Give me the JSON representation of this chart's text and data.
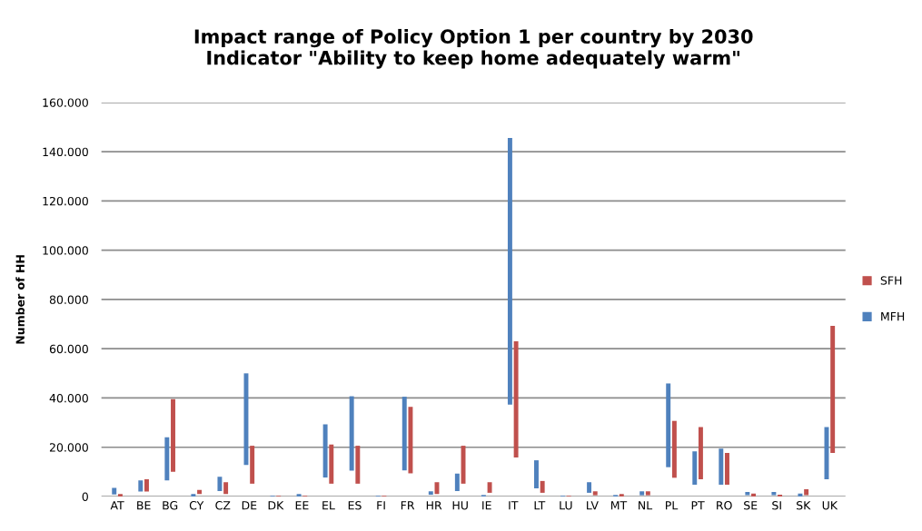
{
  "chart_data": {
    "type": "bar",
    "title": "Impact range of Policy Option 1 per country by 2030\nIndicator \"Ability to keep home adequately warm\"",
    "ylabel": "Number of HH",
    "categories": [
      "AT",
      "BE",
      "BG",
      "CY",
      "CZ",
      "DE",
      "DK",
      "EE",
      "EL",
      "ES",
      "FI",
      "FR",
      "HR",
      "HU",
      "IE",
      "IT",
      "LT",
      "LU",
      "LV",
      "MT",
      "NL",
      "PL",
      "PT",
      "RO",
      "SE",
      "SI",
      "SK",
      "UK"
    ],
    "series": [
      {
        "name": "MFH",
        "color": "#4f81bd",
        "base": [
          800,
          2000,
          6500,
          0,
          2200,
          12800,
          0,
          0,
          7700,
          10500,
          0,
          10600,
          700,
          2200,
          0,
          37300,
          3300,
          0,
          1500,
          0,
          500,
          11900,
          4800,
          4800,
          500,
          500,
          0,
          7000
        ],
        "values": [
          2700,
          4500,
          17500,
          1000,
          5800,
          37200,
          300,
          1000,
          21600,
          30200,
          300,
          29900,
          1400,
          7100,
          600,
          108300,
          11400,
          300,
          4300,
          600,
          1600,
          34000,
          13500,
          14600,
          1300,
          1300,
          1200,
          21200
        ]
      },
      {
        "name": "SFH",
        "color": "#c0504d",
        "base": [
          0,
          2000,
          10000,
          1000,
          1000,
          5200,
          0,
          0,
          5200,
          5200,
          0,
          9400,
          1000,
          5200,
          1500,
          15800,
          1500,
          0,
          500,
          0,
          500,
          7600,
          7000,
          4800,
          0,
          0,
          500,
          17700
        ],
        "values": [
          1000,
          5000,
          29500,
          1700,
          4800,
          15400,
          300,
          300,
          15900,
          15400,
          300,
          27000,
          4800,
          15400,
          4300,
          47200,
          4800,
          300,
          1600,
          1000,
          1600,
          23100,
          21200,
          12900,
          1200,
          700,
          2400,
          51600
        ]
      }
    ],
    "stacked": false,
    "ylim": [
      0,
      160000
    ],
    "yticks": [
      {
        "value": 0,
        "label": "0"
      },
      {
        "value": 20000,
        "label": "20.000"
      },
      {
        "value": 40000,
        "label": "40.000"
      },
      {
        "value": 60000,
        "label": "60.000"
      },
      {
        "value": 80000,
        "label": "80.000"
      },
      {
        "value": 100000,
        "label": "100.000"
      },
      {
        "value": 120000,
        "label": "120.000"
      },
      {
        "value": 140000,
        "label": "140.000"
      },
      {
        "value": 160000,
        "label": "160.000"
      }
    ],
    "grid": "y",
    "legend": "right"
  }
}
